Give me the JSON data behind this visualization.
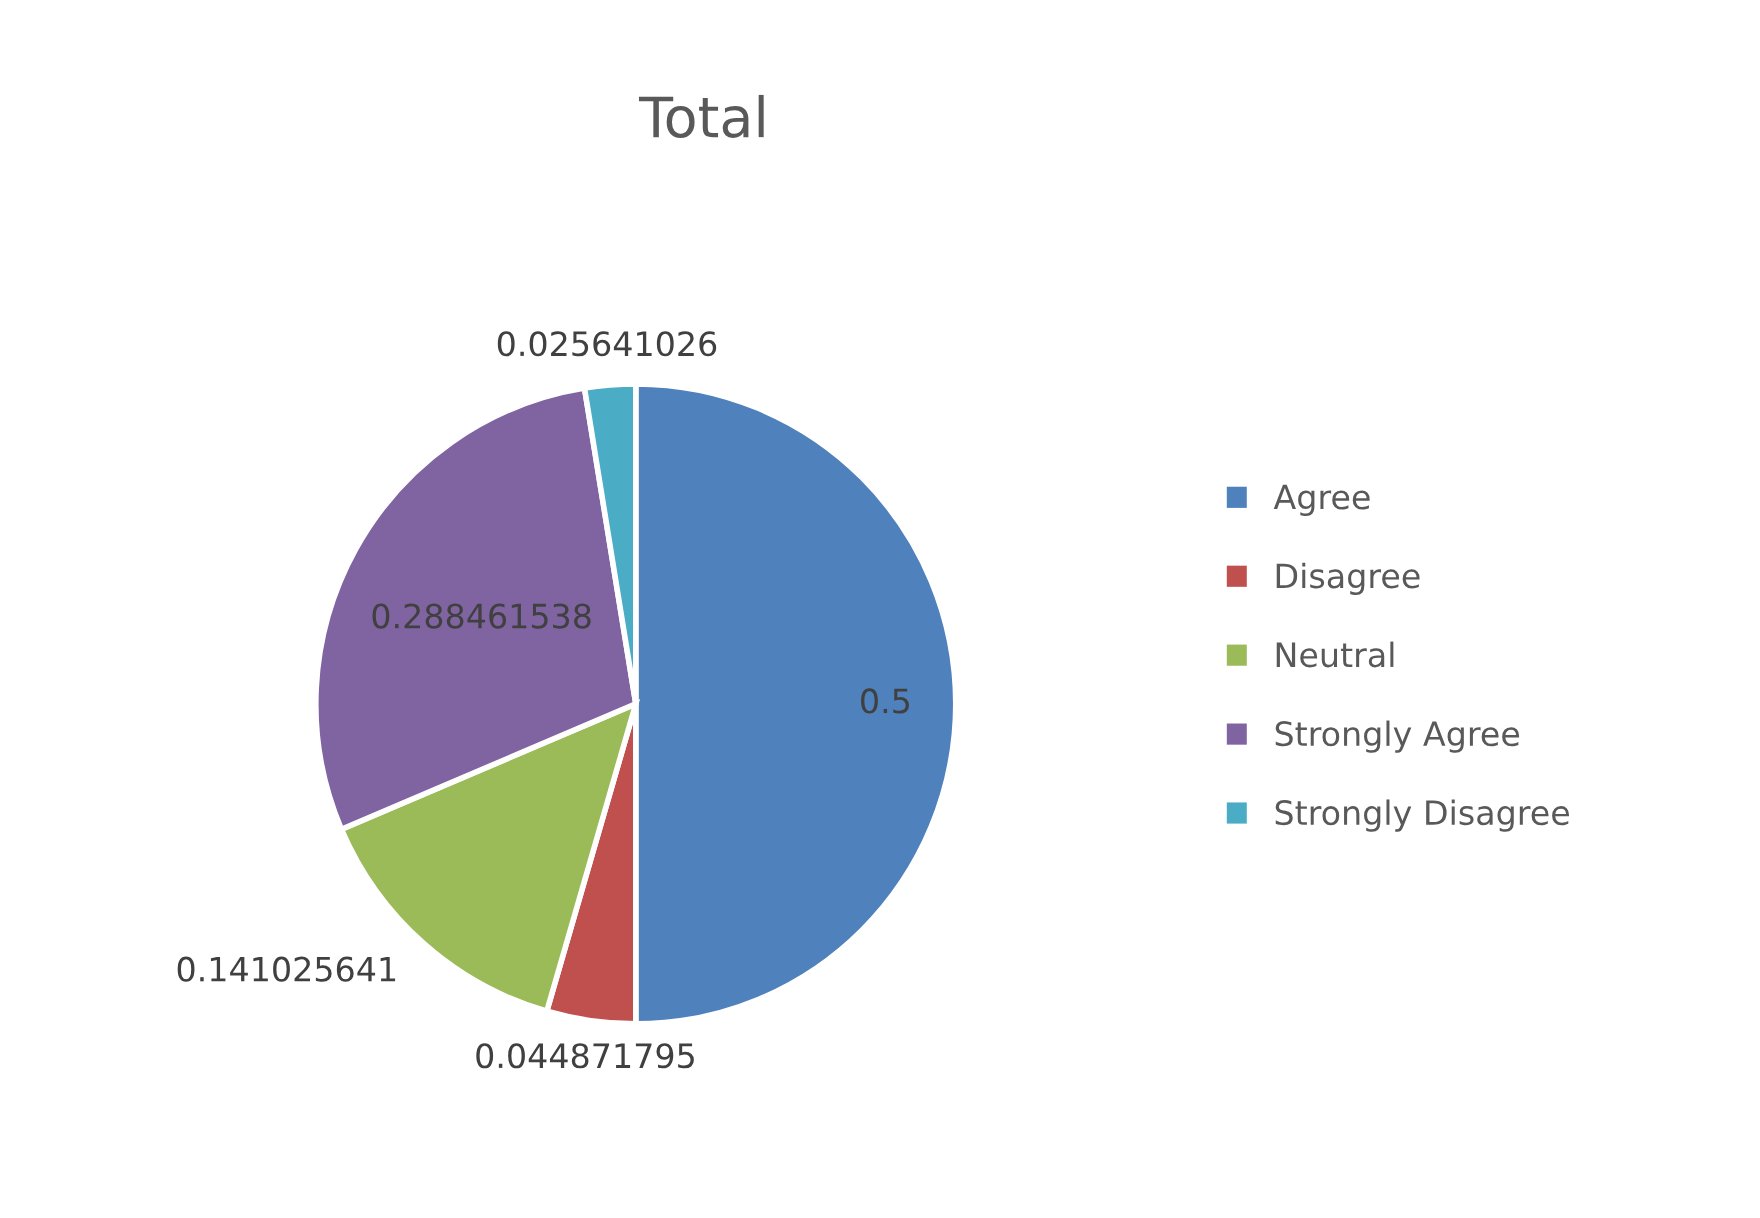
{
  "chart_data": {
    "type": "pie",
    "title": "Total",
    "categories": [
      "Agree",
      "Disagree",
      "Neutral",
      "Strongly Agree",
      "Strongly Disagree"
    ],
    "values": [
      0.5,
      0.044871795,
      0.141025641,
      0.288461538,
      0.025641026
    ],
    "colors": [
      "#4f81bd",
      "#c0504d",
      "#9bbb59",
      "#8064a2",
      "#4bacc6"
    ],
    "data_labels": true,
    "legend": "right"
  }
}
